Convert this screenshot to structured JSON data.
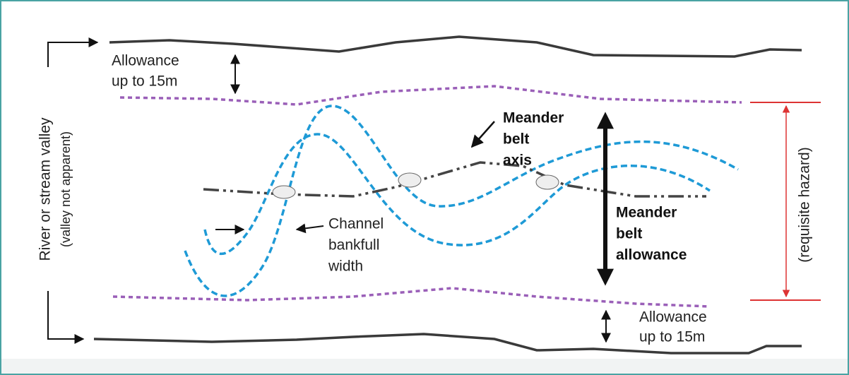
{
  "labels": {
    "top_allowance": [
      "Allowance",
      "up to 15m"
    ],
    "bottom_allowance": [
      "Allowance",
      "up to 15m"
    ],
    "meander_axis": [
      "Meander",
      "belt",
      "axis"
    ],
    "meander_allowance": [
      "Meander",
      "belt",
      "allowance"
    ],
    "channel_width": [
      "Channel",
      "bankfull",
      "width"
    ],
    "valley": [
      "River or stream valley",
      "(valley not apparent)"
    ],
    "hazard": "(requisite hazard)"
  }
}
